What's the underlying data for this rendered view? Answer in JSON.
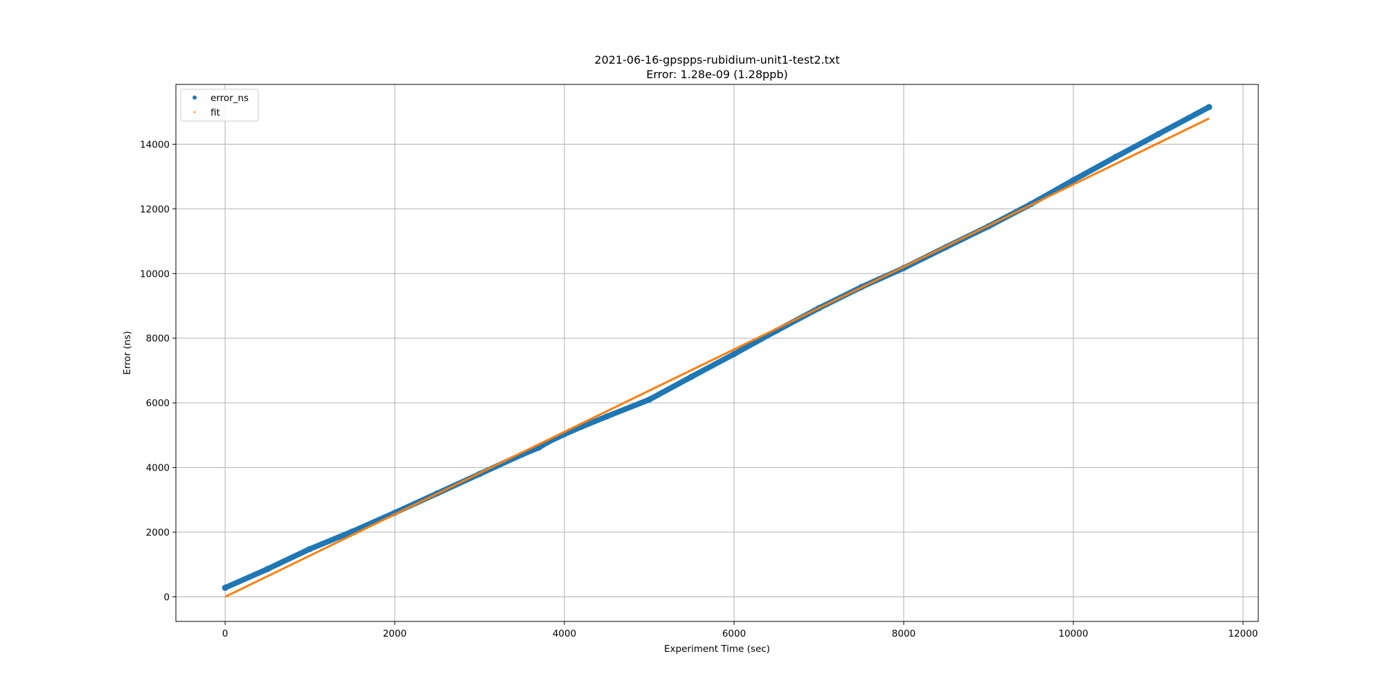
{
  "chart_data": {
    "type": "scatter",
    "title": "2021-06-16-gpspps-rubidium-unit1-test2.txt",
    "subtitle": "Error: 1.28e-09 (1.28ppb)",
    "xlabel": "Experiment Time (sec)",
    "ylabel": "Error (ns)",
    "xlim": [
      -580,
      12180
    ],
    "ylim": [
      -760,
      15850
    ],
    "xticks": [
      0,
      2000,
      4000,
      6000,
      8000,
      10000,
      12000
    ],
    "yticks": [
      0,
      2000,
      4000,
      6000,
      8000,
      10000,
      12000,
      14000
    ],
    "grid": true,
    "legend_position": "top-left",
    "series": [
      {
        "name": "error_ns",
        "color": "#1f77b4",
        "marker": "dot",
        "x": [
          0,
          500,
          1000,
          1500,
          2000,
          2500,
          3000,
          3500,
          3700,
          3800,
          4000,
          4200,
          4500,
          5000,
          5500,
          6000,
          6500,
          7000,
          7500,
          8000,
          8500,
          9000,
          9500,
          10000,
          10500,
          11000,
          11600
        ],
        "values": [
          280,
          860,
          1480,
          2020,
          2600,
          3200,
          3800,
          4400,
          4620,
          4780,
          5030,
          5260,
          5580,
          6100,
          6810,
          7510,
          8230,
          8930,
          9580,
          10170,
          10820,
          11460,
          12150,
          12890,
          13610,
          14310,
          15150
        ]
      },
      {
        "name": "fit",
        "color": "#ff7f0e",
        "marker": "line",
        "x": [
          0,
          11600
        ],
        "values": [
          0,
          14800
        ]
      }
    ]
  }
}
